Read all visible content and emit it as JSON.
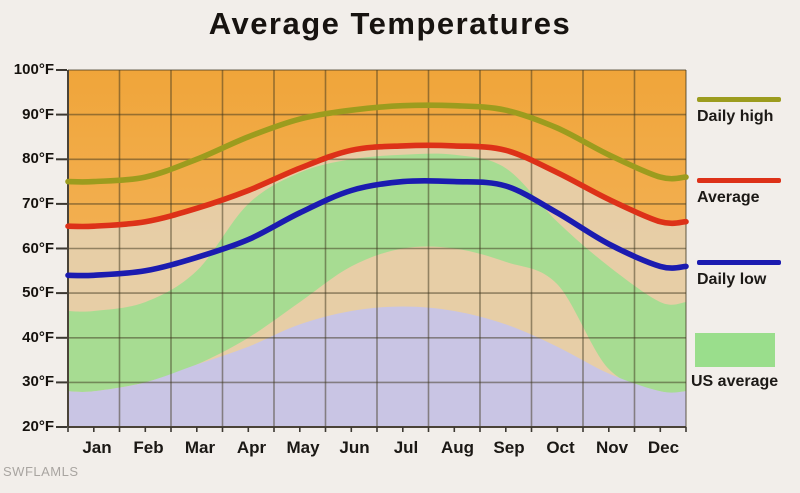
{
  "page": {
    "background": "#f2eeea",
    "watermark": "SWFLAMLS"
  },
  "chart_data": {
    "type": "line",
    "title": "Average Temperatures",
    "categories": [
      "Jan",
      "Feb",
      "Mar",
      "Apr",
      "May",
      "Jun",
      "Jul",
      "Aug",
      "Sep",
      "Oct",
      "Nov",
      "Dec"
    ],
    "y_tick_labels": [
      "100°F",
      "90°F",
      "80°F",
      "70°F",
      "60°F",
      "50°F",
      "40°F",
      "30°F",
      "20°F"
    ],
    "ylim": [
      20,
      100
    ],
    "grid": {
      "on": true,
      "color": "rgba(62,54,30,0.5)",
      "y_step_deg": 10,
      "x_step_months": 1
    },
    "legend_position": "right",
    "series": [
      {
        "name": "Daily high",
        "color": "#9c9c1e",
        "values": [
          75,
          76,
          80,
          85,
          89,
          91,
          92,
          92,
          91,
          87,
          81,
          76
        ]
      },
      {
        "name": "Average",
        "color": "#dd3118",
        "values": [
          65,
          66,
          69,
          73,
          78,
          82,
          83,
          83,
          82,
          77,
          71,
          66
        ]
      },
      {
        "name": "Daily low",
        "color": "#1b1bb0",
        "values": [
          54,
          55,
          58,
          62,
          68,
          73,
          75,
          75,
          74,
          68,
          61,
          56
        ]
      }
    ],
    "us_average_band": {
      "name": "US average",
      "color": "#a3dc90",
      "top": [
        46,
        48,
        55,
        70,
        77,
        80,
        81,
        81,
        78,
        66,
        56,
        48
      ],
      "bottom": [
        28,
        30,
        34,
        40,
        48,
        56,
        60,
        60,
        57,
        52,
        33,
        28
      ]
    },
    "fills": {
      "plot_background_top": "#f0a53a",
      "plot_background_bottom": "#f6bc6c",
      "below_average_fill": "#e6cfab",
      "lower_fill_color": "#c8c5e6",
      "lower_fill_boundary": [
        28,
        30,
        34,
        38,
        43,
        46,
        47,
        46,
        43,
        38,
        32,
        28
      ]
    },
    "legend": [
      {
        "label": "Daily high",
        "swatch": "line",
        "color": "#9c9c1e"
      },
      {
        "label": "Average",
        "swatch": "line",
        "color": "#dd3118"
      },
      {
        "label": "Daily low",
        "swatch": "line",
        "color": "#1b1bb0"
      },
      {
        "label": "US average",
        "swatch": "area",
        "color": "#9ade8c"
      }
    ]
  }
}
